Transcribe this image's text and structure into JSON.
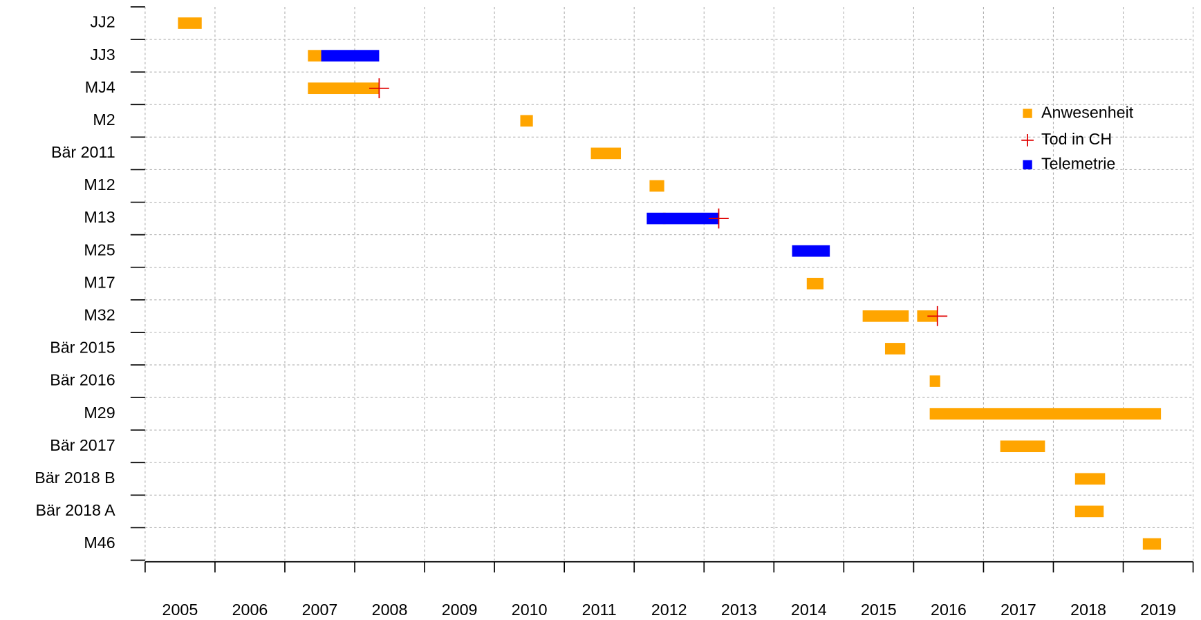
{
  "chart_data": {
    "type": "timeline",
    "categories": [
      "JJ2",
      "JJ3",
      "MJ4",
      "M2",
      "Bär 2011",
      "M12",
      "M13",
      "M25",
      "M17",
      "M32",
      "Bär 2015",
      "Bär 2016",
      "M29",
      "Bär 2017",
      "Bär 2018 B",
      "Bär 2018 A",
      "M46"
    ],
    "series": [
      {
        "name": "Anwesenheit",
        "color": "#FFA500",
        "marker": "bar",
        "values": [
          [
            [
              2005.47,
              2005.81
            ]
          ],
          [
            [
              2007.33,
              2007.52
            ]
          ],
          [
            [
              2007.33,
              2008.35
            ]
          ],
          [
            [
              2010.37,
              2010.55
            ]
          ],
          [
            [
              2011.38,
              2011.81
            ]
          ],
          [
            [
              2012.22,
              2012.43
            ]
          ],
          [
            [
              2012.41,
              2012.45
            ]
          ],
          [],
          [
            [
              2014.47,
              2014.71
            ]
          ],
          [
            [
              2015.27,
              2015.93
            ],
            [
              2016.05,
              2016.34
            ]
          ],
          [
            [
              2015.59,
              2015.88
            ]
          ],
          [
            [
              2016.23,
              2016.38
            ]
          ],
          [
            [
              2016.23,
              2019.54
            ]
          ],
          [
            [
              2017.24,
              2017.88
            ]
          ],
          [
            [
              2018.31,
              2018.74
            ]
          ],
          [
            [
              2018.31,
              2018.72
            ]
          ],
          [
            [
              2019.28,
              2019.54
            ]
          ]
        ]
      },
      {
        "name": "Tod in CH",
        "color": "#E00000",
        "marker": "cross",
        "values": [
          null,
          null,
          2008.35,
          null,
          null,
          null,
          2013.21,
          null,
          null,
          2016.34,
          null,
          null,
          null,
          null,
          null,
          null,
          null
        ]
      },
      {
        "name": "Telemetrie",
        "color": "#0000FF",
        "marker": "bar",
        "values": [
          [],
          [
            [
              2007.52,
              2008.35
            ]
          ],
          [],
          [],
          [],
          [],
          [
            [
              2012.18,
              2013.21
            ]
          ],
          [
            [
              2014.26,
              2014.8
            ]
          ],
          [],
          [],
          [],
          [],
          [],
          [],
          [],
          [],
          []
        ]
      }
    ],
    "xlim": [
      2005,
      2020
    ],
    "xticks": [
      2005,
      2006,
      2007,
      2008,
      2009,
      2010,
      2011,
      2012,
      2013,
      2014,
      2015,
      2016,
      2017,
      2018,
      2019,
      2020
    ],
    "xtick_labels": [
      2005,
      2006,
      2007,
      2008,
      2009,
      2010,
      2011,
      2012,
      2013,
      2014,
      2015,
      2016,
      2017,
      2018,
      2019
    ],
    "grid": true,
    "legend": "topright"
  }
}
